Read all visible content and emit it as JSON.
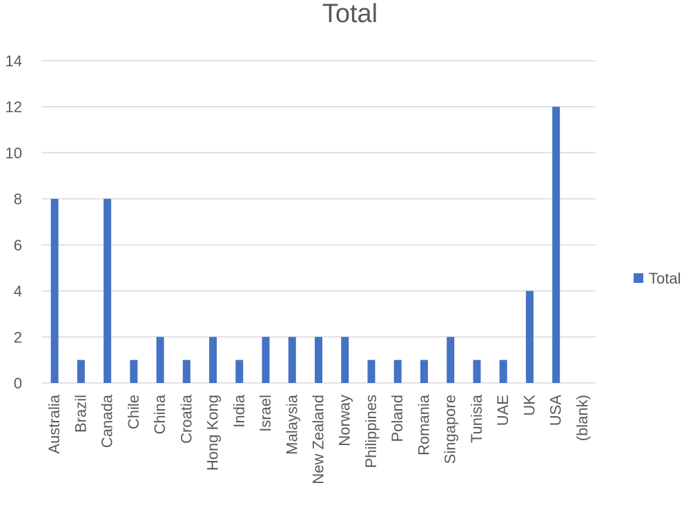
{
  "chart_data": {
    "type": "bar",
    "title": "Total",
    "xlabel": "",
    "ylabel": "",
    "categories": [
      "Australia",
      "Brazil",
      "Canada",
      "Chile",
      "China",
      "Croatia",
      "Hong Kong",
      "India",
      "Israel",
      "Malaysia",
      "New Zealand",
      "Norway",
      "Philippines",
      "Poland",
      "Romania",
      "Singapore",
      "Tunisia",
      "UAE",
      "UK",
      "USA",
      "(blank)"
    ],
    "series": [
      {
        "name": "Total",
        "values": [
          8,
          1,
          8,
          1,
          2,
          1,
          2,
          1,
          2,
          2,
          2,
          2,
          1,
          1,
          1,
          2,
          1,
          1,
          4,
          12,
          null
        ]
      }
    ],
    "ylim": [
      0,
      14
    ],
    "yticks": [
      "0",
      "2",
      "4",
      "6",
      "8",
      "10",
      "12",
      "14"
    ],
    "grid": true,
    "legend_position": "right",
    "colors": {
      "bar": "#4472C4",
      "grid": "#D9D9D9",
      "text": "#595959"
    }
  }
}
